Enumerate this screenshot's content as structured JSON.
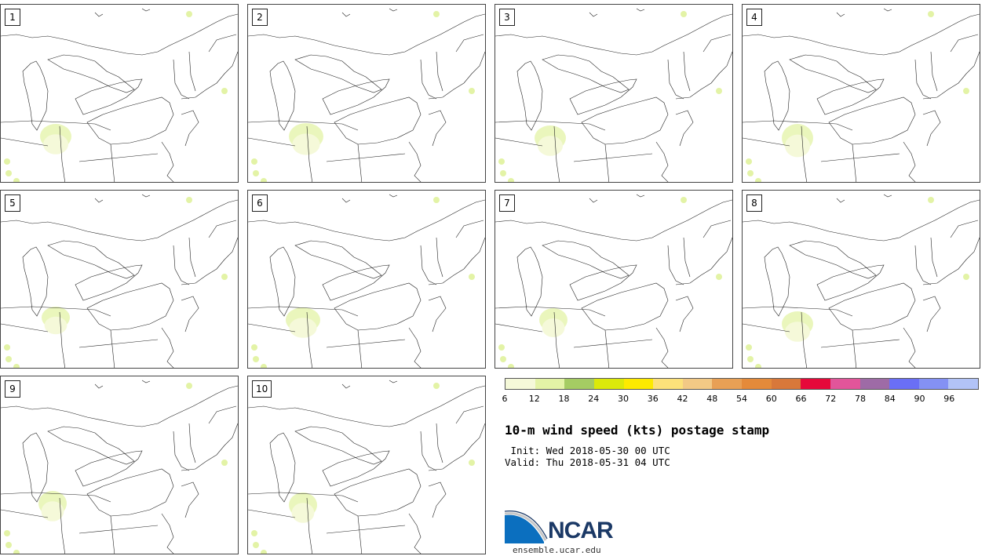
{
  "panels": [
    {
      "label": "1"
    },
    {
      "label": "2"
    },
    {
      "label": "3"
    },
    {
      "label": "4"
    },
    {
      "label": "5"
    },
    {
      "label": "6"
    },
    {
      "label": "7"
    },
    {
      "label": "8"
    },
    {
      "label": "9"
    },
    {
      "label": "10"
    }
  ],
  "colorbar": {
    "colors": [
      "#f5f9d9",
      "#e3f3a6",
      "#a5cc63",
      "#dbe90a",
      "#fdea00",
      "#fce17a",
      "#f2c985",
      "#e8a055",
      "#e48a3a",
      "#d8783a",
      "#e6093a",
      "#e2559a",
      "#9e6ba6",
      "#6a6ff5",
      "#8491f4",
      "#b2c3f7"
    ],
    "ticks": [
      "6",
      "12",
      "18",
      "24",
      "30",
      "36",
      "42",
      "48",
      "54",
      "60",
      "66",
      "72",
      "78",
      "84",
      "90",
      "96"
    ]
  },
  "title": "10-m wind speed (kts) postage stamp",
  "init_text": " Init: Wed 2018-05-30 00 UTC",
  "valid_text": "Valid: Thu 2018-05-31 04 UTC",
  "logo": {
    "text": "NCAR",
    "site": "ensemble.ucar.edu",
    "brand_color": "#1b3966",
    "accent_color": "#0b6fbf"
  }
}
